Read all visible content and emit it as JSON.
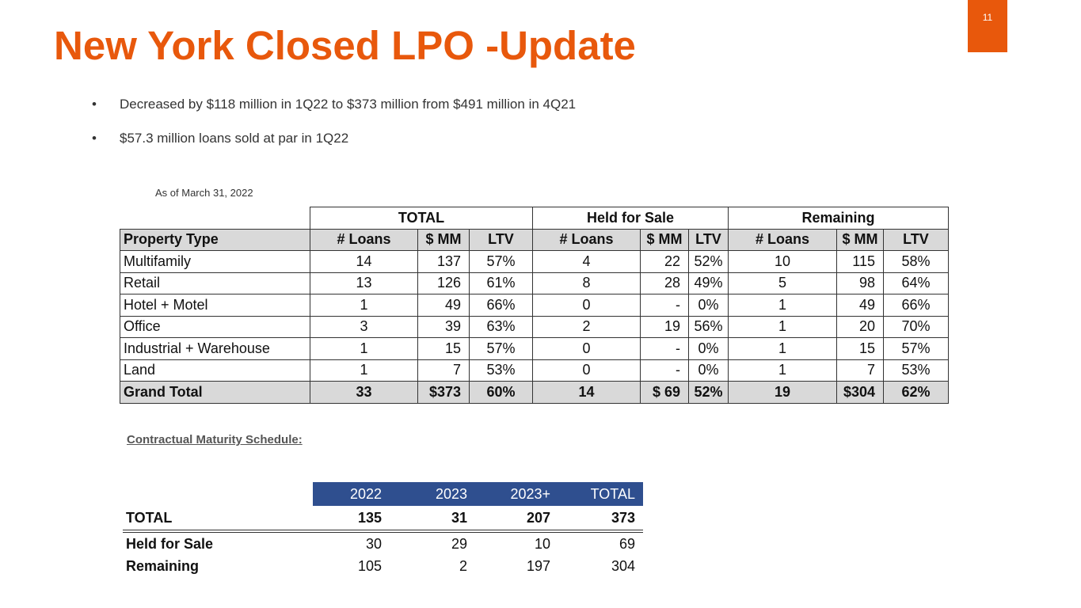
{
  "title": "New York Closed LPO -Update",
  "page_number": "11",
  "bullets": [
    "Decreased by $118 million in 1Q22 to $373 million from $491 million in 4Q21",
    "$57.3 million  loans sold at par in 1Q22"
  ],
  "as_of": "As of March 31, 2022",
  "loan_table": {
    "groups": [
      "TOTAL",
      "Held for Sale",
      "Remaining"
    ],
    "headers": [
      "Property Type",
      "# Loans",
      "$ MM",
      "LTV",
      "# Loans",
      "$ MM",
      "LTV",
      "# Loans",
      "$ MM",
      "LTV"
    ],
    "rows": [
      [
        "Multifamily",
        "14",
        "137",
        "57%",
        "4",
        "22",
        "52%",
        "10",
        "115",
        "58%"
      ],
      [
        "Retail",
        "13",
        "126",
        "61%",
        "8",
        "28",
        "49%",
        "5",
        "98",
        "64%"
      ],
      [
        "Hotel + Motel",
        "1",
        "49",
        "66%",
        "0",
        "-",
        "0%",
        "1",
        "49",
        "66%"
      ],
      [
        "Office",
        "3",
        "39",
        "63%",
        "2",
        "19",
        "56%",
        "1",
        "20",
        "70%"
      ],
      [
        "Industrial + Warehouse",
        "1",
        "15",
        "57%",
        "0",
        "-",
        "0%",
        "1",
        "15",
        "57%"
      ],
      [
        "Land",
        "1",
        "7",
        "53%",
        "0",
        "-",
        "0%",
        "1",
        "7",
        "53%"
      ]
    ],
    "total": [
      "Grand Total",
      "33",
      "$373",
      "60%",
      "14",
      "$ 69",
      "52%",
      "19",
      "$304",
      "62%"
    ]
  },
  "schedule_title": "Contractual Maturity Schedule:",
  "schedule": {
    "headers": [
      "2022",
      "2023",
      "2023+",
      "TOTAL"
    ],
    "total": [
      "TOTAL",
      "135",
      "31",
      "207",
      "373"
    ],
    "rows": [
      [
        "Held for Sale",
        "30",
        "29",
        "10",
        "69"
      ],
      [
        "Remaining",
        "105",
        "2",
        "197",
        "304"
      ]
    ]
  }
}
